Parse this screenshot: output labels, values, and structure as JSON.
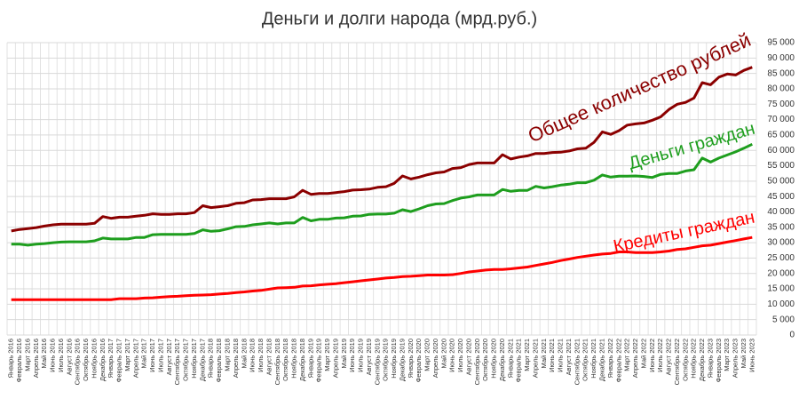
{
  "chart_data": {
    "type": "line",
    "title": "Деньги и долги народа (мрд.руб.)",
    "categories": [
      "Январь 2016",
      "Февраль 2016",
      "Март 2016",
      "Апрель 2016",
      "Май 2016",
      "Июнь 2016",
      "Июль 2016",
      "Август 2016",
      "Сентябрь 2016",
      "Октябрь 2016",
      "Ноябрь 2016",
      "Декабрь 2016",
      "Январь 2017",
      "Февраль 2017",
      "Март 2017",
      "Апрель 2017",
      "Май 2017",
      "Июнь 2017",
      "Июль 2017",
      "Август 2017",
      "Сентябрь 2017",
      "Октябрь 2017",
      "Ноябрь 2017",
      "Декабрь 2017",
      "Январь 2018",
      "Февраль 2018",
      "Март 2018",
      "Апрель 2018",
      "Май 2018",
      "Июнь 2018",
      "Июль 2018",
      "Август 2018",
      "Сентябрь 2018",
      "Октябрь 2018",
      "Ноябрь 2018",
      "Декабрь 2018",
      "Январь 2019",
      "Февраль 2019",
      "Март 2019",
      "Апрель 2019",
      "Май 2019",
      "Июнь 2019",
      "Июль 2019",
      "Август 2019",
      "Сентябрь 2019",
      "Октябрь 2019",
      "Ноябрь 2019",
      "Декабрь 2019",
      "Январь 2020",
      "Февраль 2020",
      "Март 2020",
      "Апрель 2020",
      "Май 2020",
      "Июнь 2020",
      "Июль 2020",
      "Август 2020",
      "Сентябрь 2020",
      "Октябрь 2020",
      "Ноябрь 2020",
      "Декабрь 2020",
      "Январь 2021",
      "Февраль 2021",
      "Март 2021",
      "Апрель 2021",
      "Май 2021",
      "Июнь 2021",
      "Июль 2021",
      "Август 2021",
      "Сентябрь 2021",
      "Октябрь 2021",
      "Ноябрь 2021",
      "Декабрь 2021",
      "Январь 2022",
      "Февраль 2022",
      "Март 2022",
      "Апрель 2022",
      "Май 2022",
      "Июнь 2022",
      "Июль 2022",
      "Август 2022",
      "Сентябрь 2022",
      "Октябрь 2022",
      "Ноябрь 2022",
      "Декабрь 2022",
      "Январь 2023",
      "Февраль 2023",
      "Март 2023",
      "Апрель 2023",
      "Май 2023",
      "Июнь 2023"
    ],
    "series": [
      {
        "name": "Общее количество рублей",
        "color": "#8b0000",
        "values": [
          33800,
          34300,
          34600,
          34900,
          35400,
          35800,
          36000,
          36000,
          36000,
          36000,
          36300,
          38500,
          37900,
          38300,
          38300,
          38600,
          38900,
          39400,
          39200,
          39200,
          39400,
          39400,
          39800,
          42000,
          41400,
          41700,
          42000,
          42800,
          43000,
          43900,
          44000,
          44300,
          44300,
          44300,
          44900,
          47000,
          45700,
          46000,
          46000,
          46300,
          46600,
          47100,
          47200,
          47400,
          48000,
          48200,
          49300,
          51700,
          50700,
          51300,
          52100,
          52700,
          53000,
          54100,
          54400,
          55400,
          55900,
          55900,
          55900,
          58600,
          57200,
          57800,
          58200,
          59000,
          59000,
          59300,
          59400,
          59800,
          60500,
          60700,
          62600,
          66000,
          65200,
          66400,
          68200,
          68600,
          68900,
          69800,
          70900,
          73300,
          75000,
          75600,
          77000,
          82000,
          81300,
          83800,
          84800,
          84500,
          86000,
          87000
        ]
      },
      {
        "name": "Деньги граждан",
        "color": "#1e9e1e",
        "values": [
          29500,
          29500,
          29200,
          29500,
          29700,
          30000,
          30200,
          30300,
          30300,
          30300,
          30600,
          31500,
          31200,
          31200,
          31200,
          31700,
          31700,
          32600,
          32700,
          32700,
          32700,
          32700,
          33000,
          34200,
          33700,
          33900,
          34500,
          35200,
          35300,
          35800,
          36100,
          36400,
          36100,
          36400,
          36400,
          38200,
          37100,
          37600,
          37600,
          38000,
          38100,
          38600,
          38700,
          39200,
          39300,
          39300,
          39600,
          40700,
          40100,
          41000,
          42000,
          42600,
          42700,
          43700,
          44500,
          44900,
          45500,
          45500,
          45500,
          47300,
          46700,
          47000,
          47000,
          48300,
          47800,
          48200,
          48700,
          49000,
          49500,
          49500,
          50300,
          52000,
          51300,
          51600,
          51600,
          51700,
          51500,
          51200,
          52200,
          52500,
          52500,
          53300,
          53700,
          57500,
          56200,
          57500,
          58500,
          59500,
          60700,
          62000
        ]
      },
      {
        "name": "Кредиты граждан",
        "color": "#ff0000",
        "values": [
          11500,
          11500,
          11500,
          11500,
          11500,
          11500,
          11500,
          11500,
          11500,
          11500,
          11500,
          11500,
          11500,
          11800,
          11800,
          11800,
          12000,
          12100,
          12300,
          12500,
          12600,
          12800,
          12900,
          13000,
          13100,
          13300,
          13500,
          13800,
          14000,
          14300,
          14500,
          14900,
          15300,
          15400,
          15500,
          15900,
          16000,
          16300,
          16500,
          16700,
          17000,
          17300,
          17600,
          17900,
          18200,
          18500,
          18700,
          19000,
          19100,
          19300,
          19500,
          19500,
          19500,
          19600,
          20000,
          20500,
          20800,
          21100,
          21300,
          21300,
          21500,
          21800,
          22100,
          22600,
          23100,
          23600,
          24200,
          24700,
          25200,
          25600,
          26000,
          26300,
          26500,
          27000,
          27000,
          26800,
          26800,
          26800,
          27000,
          27300,
          27800,
          28000,
          28500,
          29000,
          29200,
          29700,
          30200,
          30700,
          31200,
          31700
        ]
      }
    ],
    "ylim": [
      0,
      95000
    ],
    "yticks": [
      0,
      {
        "value": 5000,
        "label": "5 000"
      },
      {
        "value": 10000,
        "label": "10 000"
      },
      {
        "value": 15000,
        "label": "15 000"
      },
      {
        "value": 20000,
        "label": "20 000"
      },
      {
        "value": 25000,
        "label": "25 000"
      },
      {
        "value": 30000,
        "label": "30 000"
      },
      {
        "value": 35000,
        "label": "35 000"
      },
      {
        "value": 40000,
        "label": "40 000"
      },
      {
        "value": 45000,
        "label": "45 000"
      },
      {
        "value": 50000,
        "label": "50 000"
      },
      {
        "value": 55000,
        "label": "55 000"
      },
      {
        "value": 60000,
        "label": "60 000"
      },
      {
        "value": 65000,
        "label": "65 000"
      },
      {
        "value": 70000,
        "label": "70 000"
      },
      {
        "value": 75000,
        "label": "75 000"
      },
      {
        "value": 80000,
        "label": "80 000"
      },
      {
        "value": 85000,
        "label": "85 000"
      },
      {
        "value": 90000,
        "label": "90 000"
      },
      {
        "value": 95000,
        "label": "95 000"
      }
    ],
    "grid": true
  }
}
